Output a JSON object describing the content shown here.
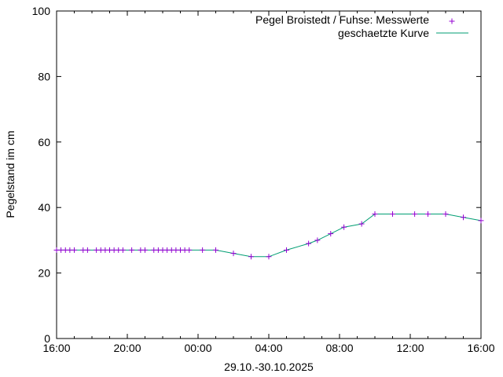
{
  "chart_data": {
    "type": "line",
    "title": "",
    "xlabel": "29.10.-30.10.2025",
    "ylabel": "Pegelstand im cm",
    "xlim": [
      0,
      24
    ],
    "ylim": [
      0,
      100
    ],
    "yticks": [
      0,
      20,
      40,
      60,
      80,
      100
    ],
    "yticklabels": [
      "0",
      "20",
      "40",
      "60",
      "80",
      "100"
    ],
    "xticks": [
      0,
      4,
      8,
      12,
      16,
      20,
      24
    ],
    "xticklabels": [
      "16:00",
      "20:00",
      "00:00",
      "04:00",
      "08:00",
      "12:00",
      "16:00"
    ],
    "x_unit": "hours after 29.10. 16:00",
    "legend_position": "top-right",
    "grid": false,
    "series": [
      {
        "name": "Pegel Broistedt / Fuhse: Messwerte",
        "kind": "points",
        "marker": "+",
        "color": "#9400d3",
        "x": [
          0.0,
          0.25,
          0.5,
          0.75,
          1.0,
          1.5,
          1.75,
          2.25,
          2.5,
          2.75,
          3.0,
          3.25,
          3.5,
          3.75,
          4.25,
          4.75,
          5.0,
          5.5,
          5.75,
          6.0,
          6.25,
          6.5,
          6.75,
          7.0,
          7.25,
          7.5,
          8.25,
          9.0,
          10.0,
          11.0,
          12.0,
          13.0,
          14.25,
          14.75,
          15.5,
          16.25,
          17.25,
          18.0,
          19.0,
          20.25,
          21.0,
          22.0,
          23.0,
          24.0
        ],
        "y": [
          27,
          27,
          27,
          27,
          27,
          27,
          27,
          27,
          27,
          27,
          27,
          27,
          27,
          27,
          27,
          27,
          27,
          27,
          27,
          27,
          27,
          27,
          27,
          27,
          27,
          27,
          27,
          27,
          26,
          25,
          25,
          27,
          29,
          30,
          32,
          34,
          35,
          38,
          38,
          38,
          38,
          38,
          37,
          36
        ]
      },
      {
        "name": "geschaetzte Kurve",
        "kind": "line",
        "color": "#009e73",
        "x": [
          0.0,
          9.0,
          10.0,
          11.0,
          12.0,
          13.0,
          14.25,
          14.75,
          15.5,
          16.25,
          17.25,
          18.0,
          22.0,
          23.0,
          24.0
        ],
        "y": [
          27,
          27,
          26,
          25,
          25,
          27,
          29,
          30,
          32,
          34,
          35,
          38,
          38,
          37,
          36
        ]
      }
    ]
  }
}
